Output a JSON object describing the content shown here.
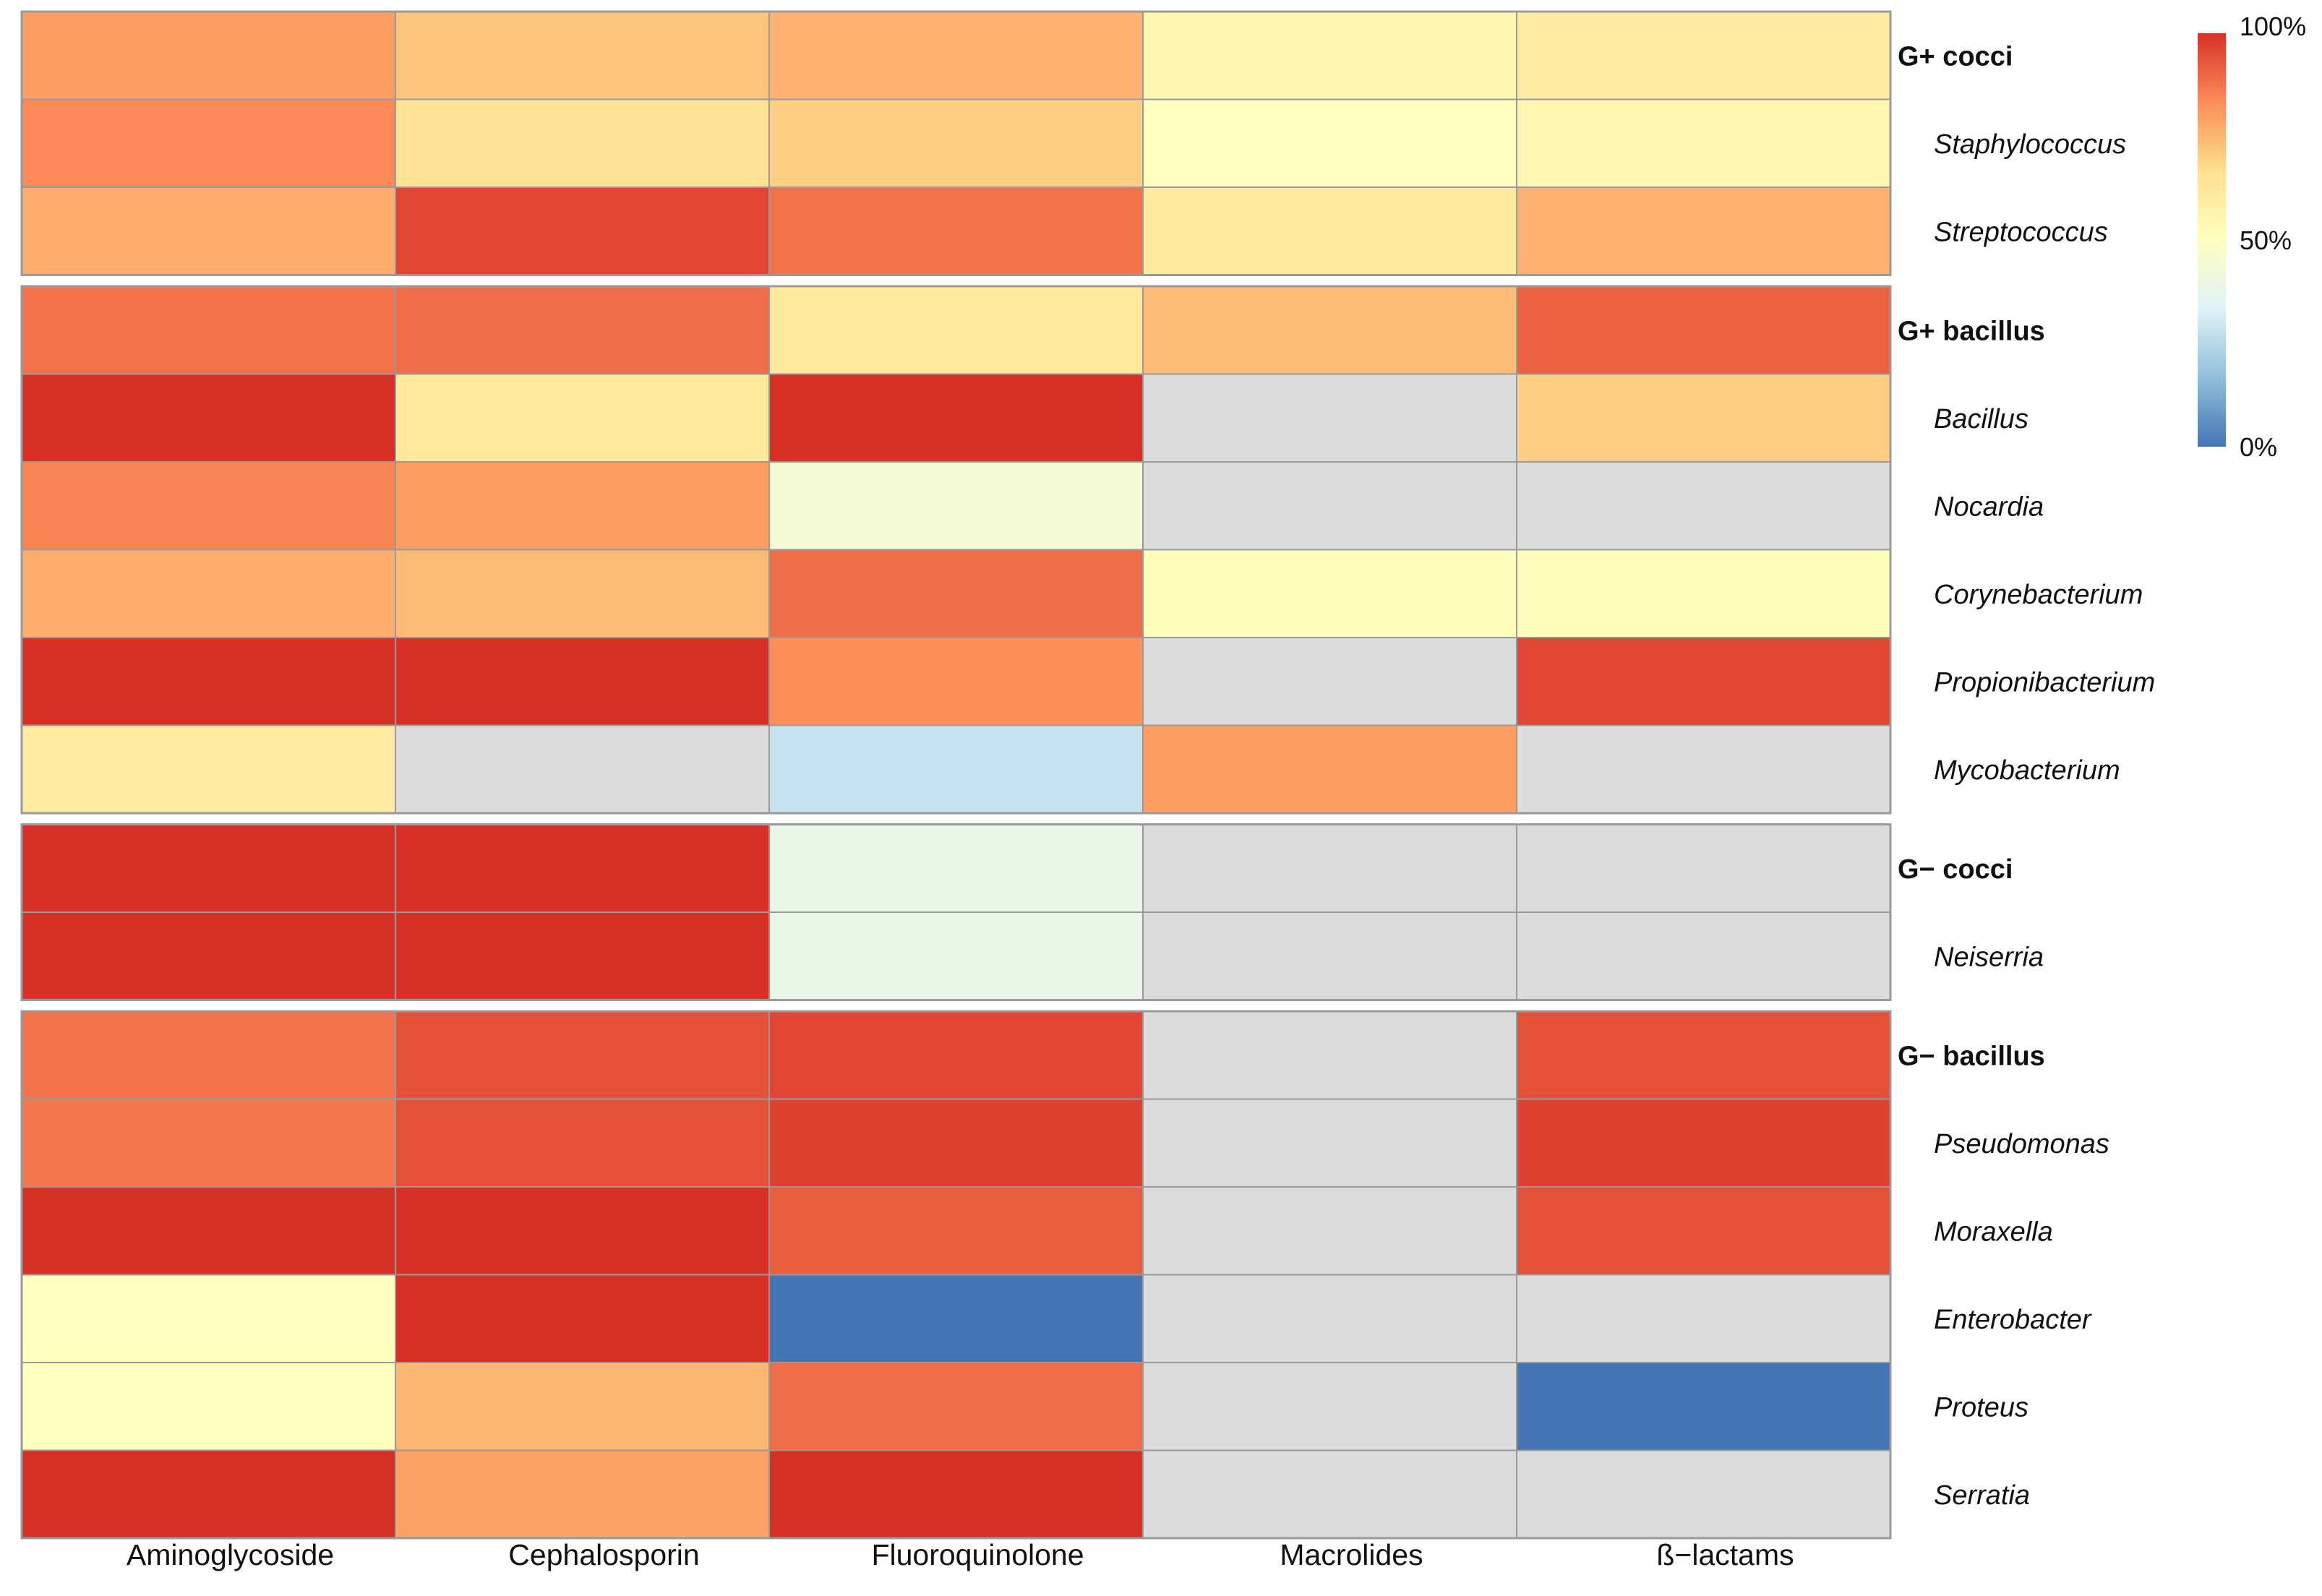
{
  "chart_data": {
    "type": "heatmap",
    "title": "",
    "xlabel": "",
    "ylabel": "",
    "columns": [
      "Aminoglycoside",
      "Cephalosporin",
      "Fluoroquinolone",
      "Macrolides",
      "ß−lactams"
    ],
    "groups": [
      {
        "name": "G+ cocci",
        "rows": [
          {
            "label": "G+ cocci",
            "bold": true,
            "values": [
              80,
              72,
              76,
              55,
              60
            ]
          },
          {
            "label": "Staphylococcus",
            "bold": false,
            "values": [
              84,
              65,
              70,
              50,
              54
            ]
          },
          {
            "label": "Streptococcus",
            "bold": false,
            "values": [
              77,
              96,
              88,
              61,
              76
            ]
          }
        ]
      },
      {
        "name": "G+ bacillus",
        "rows": [
          {
            "label": "G+ bacillus",
            "bold": true,
            "values": [
              88,
              89,
              62,
              74,
              91
            ]
          },
          {
            "label": "Bacillus",
            "bold": false,
            "values": [
              100,
              62,
              100,
              null,
              70
            ]
          },
          {
            "label": "Nocardia",
            "bold": false,
            "values": [
              85,
              80,
              44,
              null,
              null
            ]
          },
          {
            "label": "Corynebacterium",
            "bold": false,
            "values": [
              77,
              74,
              89,
              51,
              51
            ]
          },
          {
            "label": "Propionibacterium",
            "bold": false,
            "values": [
              100,
              100,
              83,
              null,
              96
            ]
          },
          {
            "label": "Mycobacterium",
            "bold": false,
            "values": [
              60,
              null,
              28,
              80,
              null
            ]
          }
        ]
      },
      {
        "name": "G− cocci",
        "rows": [
          {
            "label": "G− cocci",
            "bold": true,
            "values": [
              100,
              100,
              38,
              null,
              null
            ]
          },
          {
            "label": "Neiserria",
            "bold": false,
            "values": [
              100,
              100,
              38,
              null,
              null
            ]
          }
        ]
      },
      {
        "name": "G− bacillus",
        "rows": [
          {
            "label": "G− bacillus",
            "bold": true,
            "values": [
              88,
              94,
              96,
              null,
              94
            ]
          },
          {
            "label": "Pseudomonas",
            "bold": false,
            "values": [
              87,
              94,
              97,
              null,
              97
            ]
          },
          {
            "label": "Moraxella",
            "bold": false,
            "values": [
              100,
              100,
              92,
              null,
              94
            ]
          },
          {
            "label": "Enterobacter",
            "bold": false,
            "values": [
              50,
              100,
              0,
              null,
              null
            ]
          },
          {
            "label": "Proteus",
            "bold": false,
            "values": [
              50,
              75,
              89,
              null,
              0
            ]
          },
          {
            "label": "Serratia",
            "bold": false,
            "values": [
              100,
              79,
              100,
              null,
              null
            ]
          }
        ]
      }
    ],
    "missing_color": "#DCDCDC",
    "color_scale": {
      "min": 0,
      "max": 100,
      "stops": [
        "#4575B4",
        "#91BFDB",
        "#E0F3F8",
        "#FFFFBF",
        "#FEE090",
        "#FC8D59",
        "#D73027"
      ]
    },
    "legend": {
      "position": "top-right",
      "tick_labels": [
        "100%",
        "50%",
        "0%"
      ],
      "tick_values": [
        100,
        50,
        0
      ]
    }
  }
}
